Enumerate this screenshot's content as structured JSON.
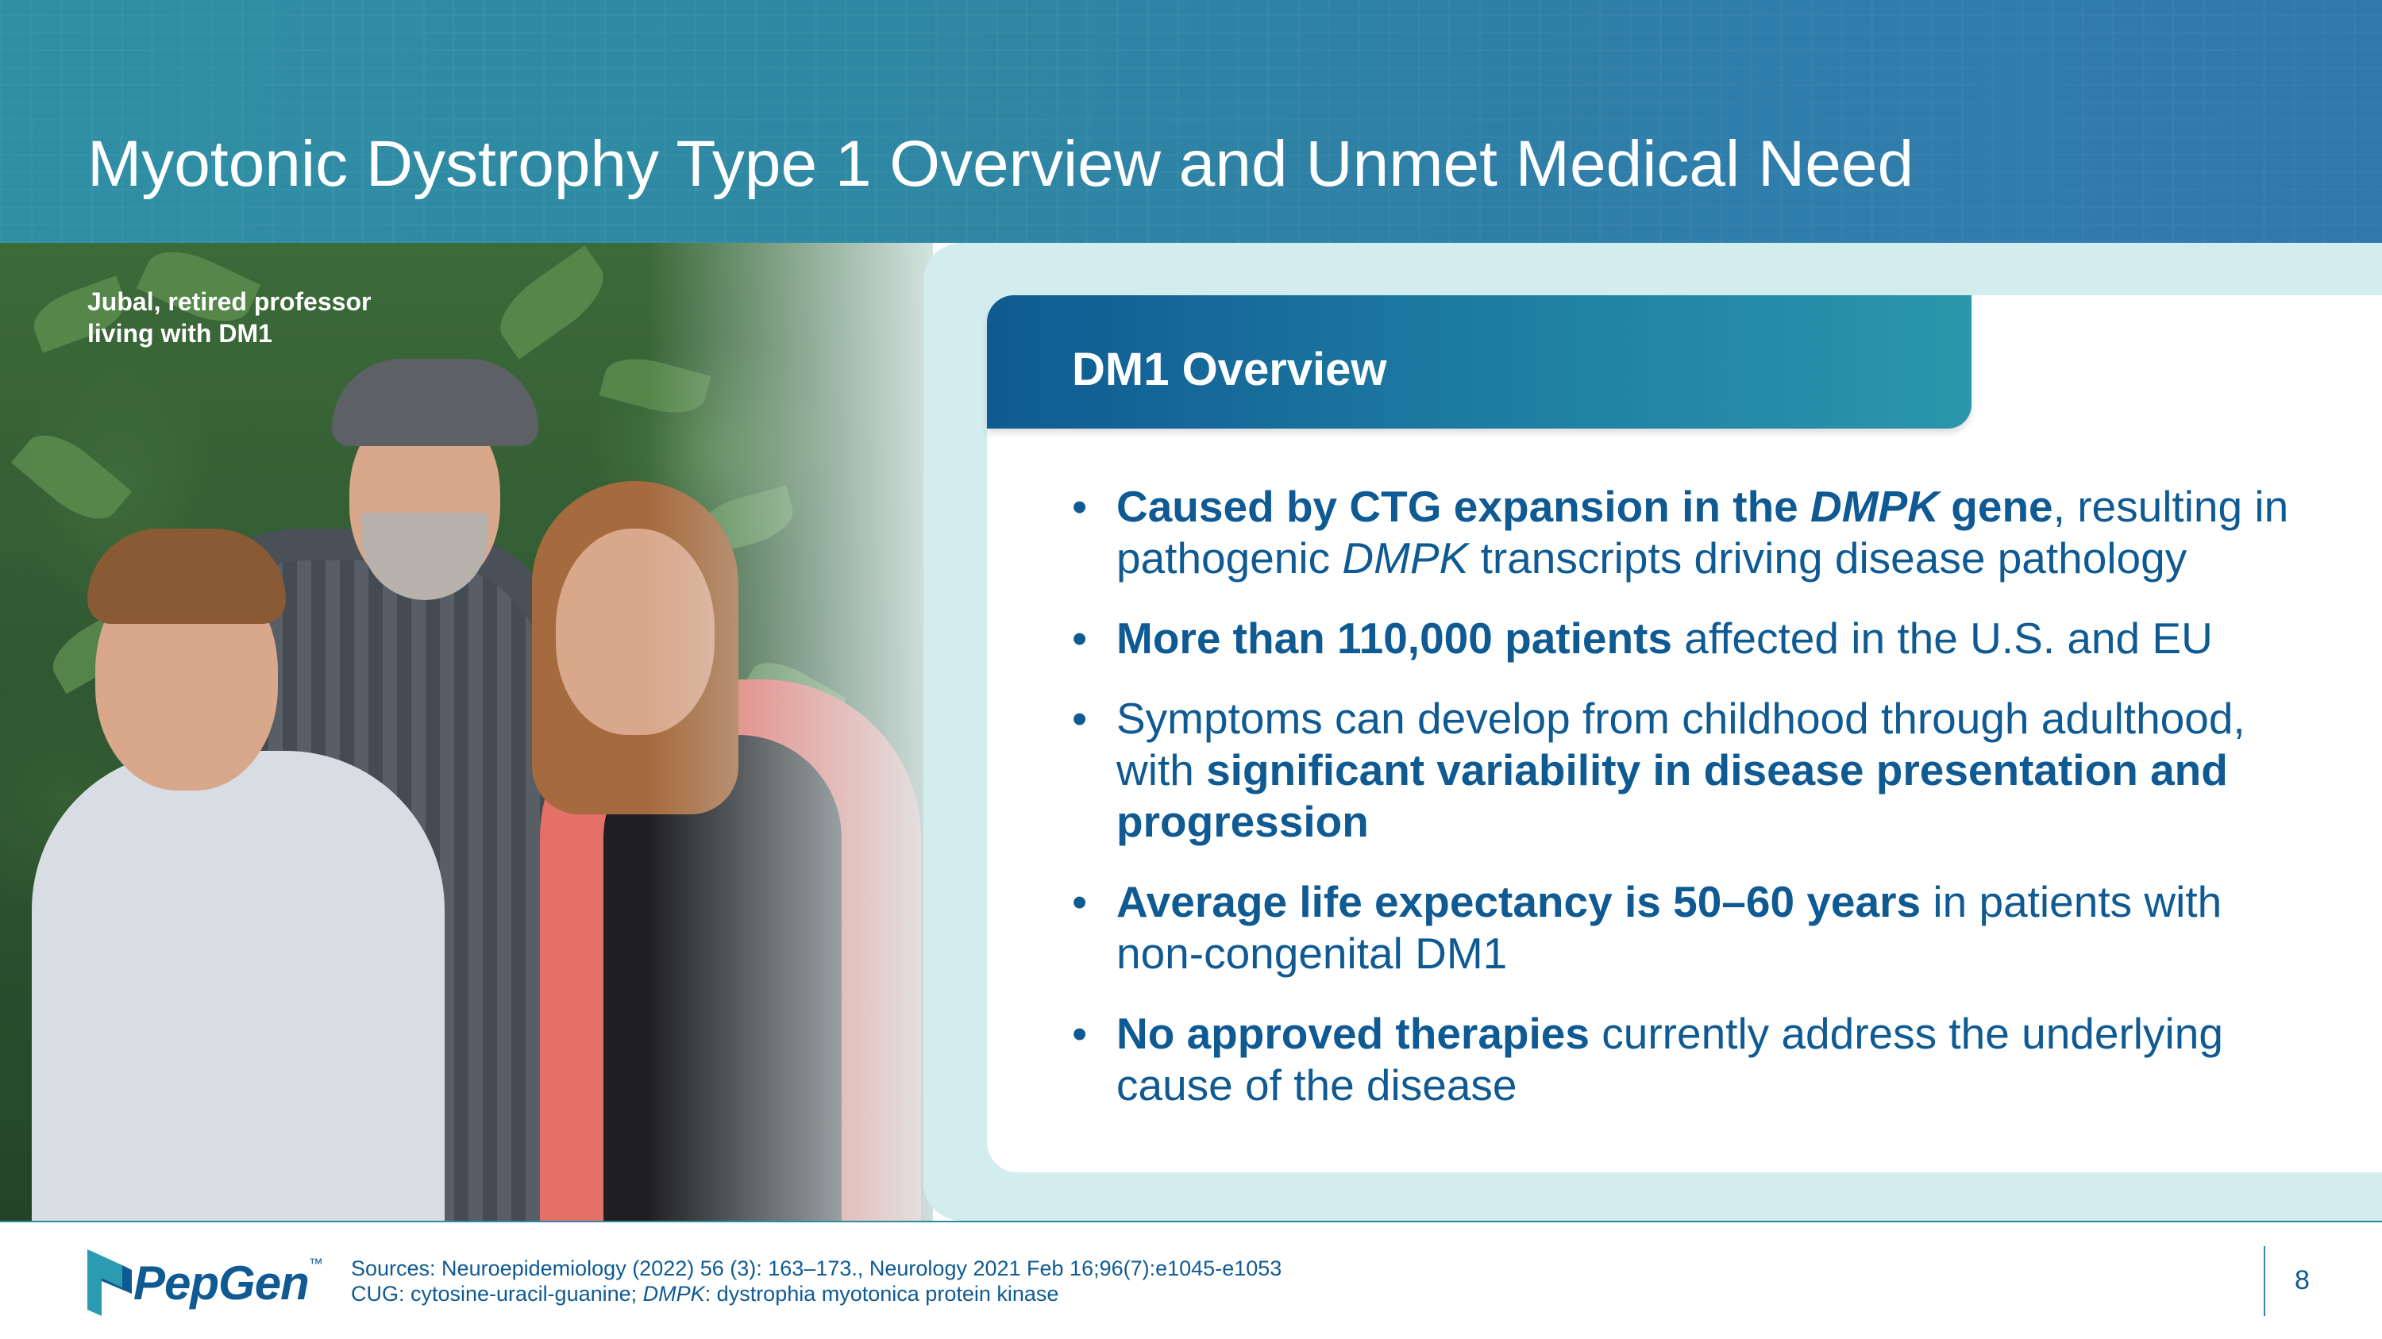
{
  "slide": {
    "title": "Myotonic Dystrophy Type 1 Overview and Unmet Medical Need",
    "page_number": "8"
  },
  "photo": {
    "caption_line1": "Jubal, retired professor",
    "caption_line2": "living with DM1"
  },
  "overview": {
    "heading": "DM1 Overview",
    "bullets": [
      {
        "b1": "Caused by CTG expansion in the ",
        "i1": "DMPK",
        "b2": " gene",
        "t1": ", resulting in pathogenic ",
        "i2": "DMPK",
        "t2": " transcripts driving disease pathology"
      },
      {
        "b1": "More than 110,000 patients",
        "t1": " affected in the U.S. and EU"
      },
      {
        "t1": "Symptoms can develop from childhood through adulthood, with ",
        "b1": "significant variability in disease presentation and progression"
      },
      {
        "b1": "Average life expectancy is 50–60 years",
        "t1": " in patients with non-congenital DM1"
      },
      {
        "b1": "No approved therapies",
        "t1": " currently address the underlying cause  of the disease"
      }
    ]
  },
  "footer": {
    "logo_text": "PepGen",
    "logo_tm": "™",
    "sources_line1": "Sources: Neuroepidemiology (2022) 56 (3): 163–173., Neurology 2021 Feb 16;96(7):e1045-e1053",
    "sources_line2_a": "CUG: cytosine-uracil-guanine; ",
    "sources_line2_i": "DMPK",
    "sources_line2_b": ": dystrophia myotonica protein kinase"
  },
  "colors": {
    "brand_blue": "#0f5a92",
    "teal": "#2e8ba2",
    "panel_bg": "#d3ecee"
  }
}
